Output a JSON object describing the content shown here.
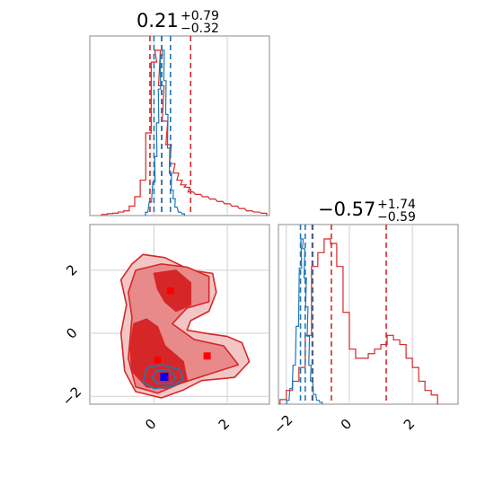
{
  "chart_data": {
    "type": "corner",
    "parameters": [
      {
        "title": {
          "median": "0.21",
          "plus": "+0.79",
          "minus": "−0.32"
        },
        "range": [
          -1.75,
          3.15
        ],
        "ticks": [
          0,
          2
        ],
        "tick_labels": [
          "0",
          "2"
        ]
      },
      {
        "title": {
          "median": "−0.57",
          "plus": "+1.74",
          "minus": "−0.59"
        },
        "range": [
          -2.25,
          3.45
        ],
        "ticks": [
          -2,
          0,
          2
        ],
        "tick_labels": [
          "−2",
          "0",
          "2"
        ]
      }
    ],
    "grid": true,
    "series": [
      {
        "color": "#d62728",
        "quantiles_1d": [
          [
            -0.11,
            0.21,
            1.0
          ],
          [
            -1.16,
            -0.57,
            1.17
          ]
        ],
        "marginal_1": {
          "x": [
            -1.35,
            -1.2,
            -1.05,
            -0.9,
            -0.75,
            -0.6,
            -0.45,
            -0.3,
            -0.15,
            0.0,
            0.1,
            0.2,
            0.3,
            0.4,
            0.5,
            0.6,
            0.7,
            0.8,
            0.9,
            1.0,
            1.2,
            1.4,
            1.6,
            1.8,
            2.0,
            2.2,
            2.4,
            2.6,
            2.8,
            3.0
          ],
          "density": [
            0.005,
            0.008,
            0.01,
            0.015,
            0.02,
            0.04,
            0.08,
            0.15,
            0.35,
            0.65,
            0.7,
            0.55,
            0.4,
            0.3,
            0.22,
            0.18,
            0.15,
            0.13,
            0.12,
            0.1,
            0.09,
            0.08,
            0.07,
            0.06,
            0.05,
            0.04,
            0.03,
            0.02,
            0.015,
            0.01
          ]
        },
        "marginal_2": {
          "x": [
            -2.1,
            -1.9,
            -1.7,
            -1.5,
            -1.3,
            -1.1,
            -0.9,
            -0.7,
            -0.5,
            -0.3,
            -0.1,
            0.1,
            0.3,
            0.5,
            0.7,
            0.9,
            1.1,
            1.3,
            1.5,
            1.7,
            1.9,
            2.1,
            2.3,
            2.5,
            2.7
          ],
          "density": [
            0.01,
            0.03,
            0.05,
            0.08,
            0.15,
            0.3,
            0.33,
            0.36,
            0.35,
            0.3,
            0.2,
            0.12,
            0.1,
            0.1,
            0.11,
            0.12,
            0.13,
            0.15,
            0.14,
            0.13,
            0.1,
            0.08,
            0.05,
            0.03,
            0.02
          ]
        },
        "markers": [
          [
            0.45,
            1.35
          ],
          [
            1.45,
            -0.72
          ],
          [
            0.1,
            -0.85
          ],
          [
            0.3,
            -1.4
          ]
        ]
      },
      {
        "color": "#1f77b4",
        "quantiles_1d": [
          [
            0.0,
            0.21,
            0.45
          ],
          [
            -1.55,
            -1.4,
            -1.18
          ]
        ],
        "marginal_1": {
          "x": [
            -0.2,
            -0.1,
            0.0,
            0.05,
            0.1,
            0.15,
            0.2,
            0.25,
            0.3,
            0.35,
            0.4,
            0.45,
            0.5,
            0.55,
            0.6,
            0.7,
            0.8
          ],
          "density": [
            0.02,
            0.08,
            0.2,
            0.35,
            0.55,
            0.75,
            0.95,
            0.98,
            0.8,
            0.6,
            0.4,
            0.25,
            0.15,
            0.1,
            0.05,
            0.02,
            0.01
          ]
        },
        "marginal_2": {
          "x": [
            -1.95,
            -1.85,
            -1.75,
            -1.65,
            -1.55,
            -1.5,
            -1.45,
            -1.4,
            -1.35,
            -1.3,
            -1.25,
            -1.2,
            -1.1,
            -1.0,
            -0.9
          ],
          "density": [
            0.02,
            0.08,
            0.2,
            0.4,
            0.7,
            0.85,
            0.8,
            0.65,
            0.5,
            0.35,
            0.2,
            0.12,
            0.05,
            0.02,
            0.01
          ]
        },
        "markers": [
          [
            0.28,
            -1.38
          ]
        ]
      }
    ]
  }
}
